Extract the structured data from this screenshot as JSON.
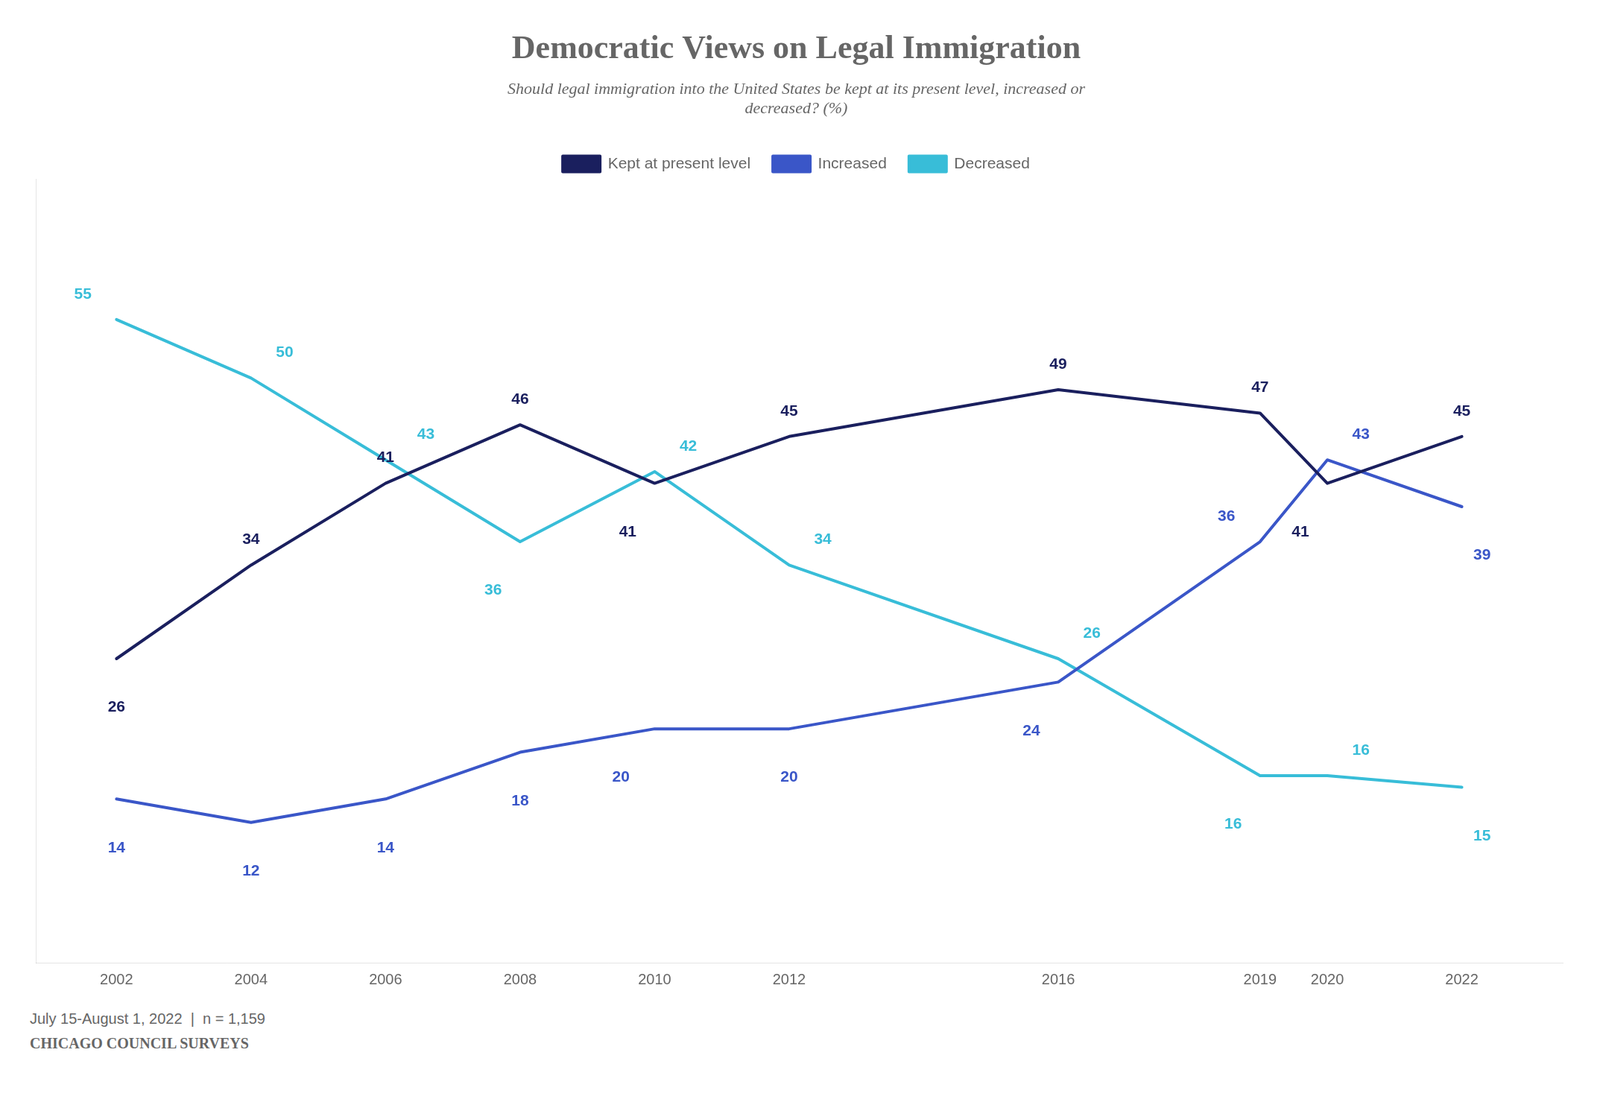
{
  "chart_data": {
    "type": "line",
    "title": "Democratic Views on Legal Immigration",
    "subtitle": "Should legal immigration into the United States be kept at its present level, increased or\ndecreased? (%)",
    "footnote": "July 15-August 1, 2022  |  n = 1,159",
    "source": "CHICAGO COUNCIL SURVEYS",
    "x": [
      2002,
      2004,
      2006,
      2008,
      2010,
      2012,
      2016,
      2019,
      2020,
      2022
    ],
    "series": [
      {
        "name": "Kept at present level",
        "color": "#1a1f5e",
        "values": [
          26,
          34,
          41,
          46,
          41,
          45,
          49,
          47,
          41,
          45
        ]
      },
      {
        "name": "Increased",
        "color": "#3a56c8",
        "values": [
          14,
          12,
          14,
          18,
          20,
          20,
          24,
          36,
          43,
          39
        ]
      },
      {
        "name": "Decreased",
        "color": "#38bdd8",
        "values": [
          55,
          50,
          43,
          36,
          42,
          34,
          26,
          16,
          16,
          15
        ]
      }
    ],
    "xlim": [
      2000.8,
      2023.5
    ],
    "xticks": [
      2002,
      2004,
      2006,
      2008,
      2010,
      2012,
      2016,
      2019,
      2020,
      2022
    ],
    "ylim": [
      0,
      67
    ],
    "grid": false,
    "legend": "top",
    "data_labels": true,
    "tick_labels": "x"
  }
}
